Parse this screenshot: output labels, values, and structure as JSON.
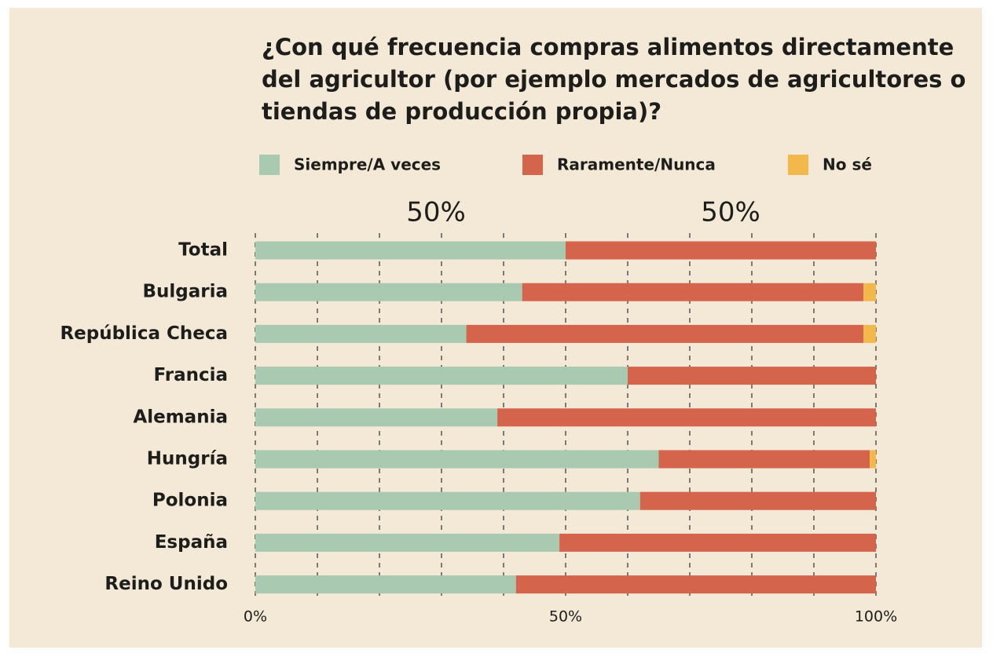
{
  "chart_data": {
    "type": "stacked_barh",
    "title": "¿Con qué frecuencia compras alimentos directamente del agricultor (por ejemplo mercados de agricultores o tiendas de producción propia)?",
    "categories": [
      "Total",
      "Bulgaria",
      "República Checa",
      "Francia",
      "Alemania",
      "Hungría",
      "Polonia",
      "España",
      "Reino Unido"
    ],
    "series": [
      {
        "name": "Siempre/A veces",
        "color": "#a9c9b1",
        "values": [
          50,
          43,
          34,
          60,
          39,
          65,
          62,
          49,
          42
        ]
      },
      {
        "name": "Raramente/Nunca",
        "color": "#d4644c",
        "values": [
          50,
          55,
          64,
          40,
          61,
          34,
          38,
          51,
          58
        ]
      },
      {
        "name": "No sé",
        "color": "#f2b84b",
        "values": [
          0,
          2,
          2,
          0,
          0,
          1,
          0,
          0,
          0
        ]
      }
    ],
    "annotations": [
      {
        "text": "50%",
        "color": "#a9c9b1"
      },
      {
        "text": "50%",
        "color": "#d4644c"
      }
    ],
    "xlim": [
      0,
      100
    ],
    "xticks": [
      {
        "value": 0,
        "label": "0%"
      },
      {
        "value": 50,
        "label": "50%"
      },
      {
        "value": 100,
        "label": "100%"
      }
    ],
    "xgrid": [
      0,
      10,
      20,
      30,
      40,
      50,
      60,
      70,
      80,
      90,
      100
    ],
    "grid": true,
    "legend": "top"
  }
}
